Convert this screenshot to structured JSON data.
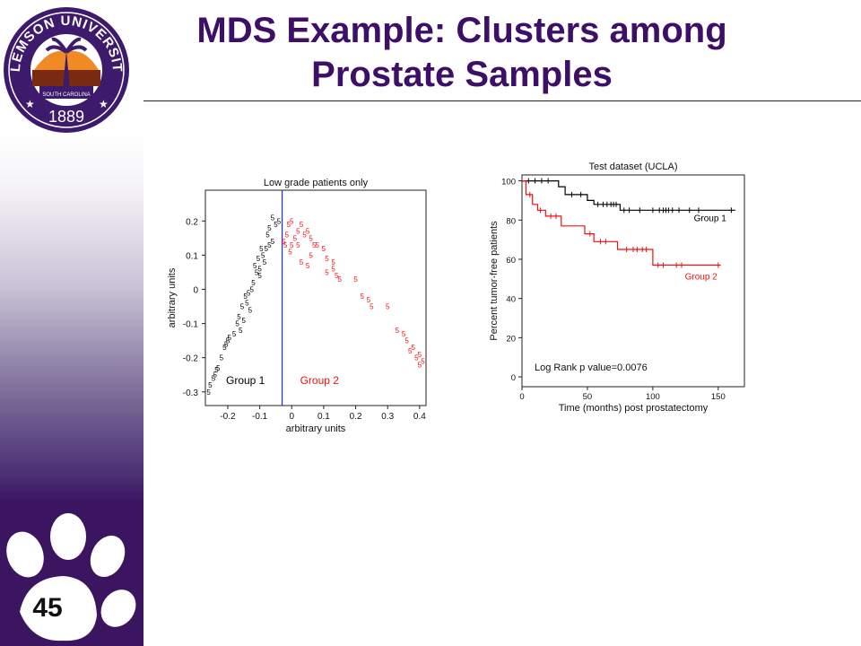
{
  "slide": {
    "title_line1": "MDS Example: Clusters among",
    "title_line2": "Prostate Samples",
    "number": "45",
    "logo": {
      "text": "CLEMSON UNIVERSITY",
      "sub": "SOUTH CAROLINA",
      "year": "1889"
    }
  },
  "colors": {
    "title": "#3d0f67",
    "sidebar_dark": "#3b1560",
    "group1": "#000000",
    "group2": "#ee1111",
    "divider": "#1a2fd0"
  },
  "chart_data": [
    {
      "type": "scatter",
      "title": "Low grade patients only",
      "xlabel": "arbitrary units",
      "ylabel": "arbitrary units",
      "xlim": [
        -0.27,
        0.42
      ],
      "ylim": [
        -0.34,
        0.29
      ],
      "xticks": [
        "-0.2",
        "-0.1",
        "0",
        "0.1",
        "0.2",
        "0.3",
        "0.4"
      ],
      "yticks": [
        "0.2",
        "0.1",
        "0",
        "-0.1",
        "-0.2",
        "-0.3"
      ],
      "marker": "5",
      "divider_x": -0.03,
      "annotations": [
        "Group 1",
        "Group 2"
      ],
      "series": [
        {
          "color": "#000000",
          "points": [
            [
              -0.26,
              -0.3
            ],
            [
              -0.255,
              -0.28
            ],
            [
              -0.245,
              -0.26
            ],
            [
              -0.24,
              -0.25
            ],
            [
              -0.235,
              -0.235
            ],
            [
              -0.22,
              -0.2
            ],
            [
              -0.21,
              -0.17
            ],
            [
              -0.205,
              -0.16
            ],
            [
              -0.2,
              -0.15
            ],
            [
              -0.18,
              -0.13
            ],
            [
              -0.17,
              -0.1
            ],
            [
              -0.16,
              -0.12
            ],
            [
              -0.15,
              -0.09
            ],
            [
              -0.155,
              -0.05
            ],
            [
              -0.14,
              -0.04
            ],
            [
              -0.13,
              -0.06
            ],
            [
              -0.145,
              -0.02
            ],
            [
              -0.135,
              -0.01
            ],
            [
              -0.12,
              0.02
            ],
            [
              -0.11,
              0.05
            ],
            [
              -0.1,
              0.06
            ],
            [
              -0.115,
              0.07
            ],
            [
              -0.105,
              0.09
            ],
            [
              -0.09,
              0.1
            ],
            [
              -0.08,
              0.12
            ],
            [
              -0.095,
              0.12
            ],
            [
              -0.07,
              0.13
            ],
            [
              -0.06,
              0.14
            ],
            [
              -0.075,
              0.16
            ],
            [
              -0.05,
              0.19
            ],
            [
              -0.04,
              0.2
            ],
            [
              -0.06,
              0.21
            ],
            [
              -0.07,
              0.18
            ],
            [
              -0.085,
              0.08
            ],
            [
              -0.1,
              0.04
            ],
            [
              -0.125,
              0.0
            ],
            [
              -0.165,
              -0.08
            ],
            [
              -0.195,
              -0.14
            ],
            [
              -0.23,
              -0.23
            ]
          ]
        },
        {
          "color": "#ee1111",
          "points": [
            [
              -0.025,
              0.14
            ],
            [
              -0.02,
              0.13
            ],
            [
              -0.015,
              0.16
            ],
            [
              -0.01,
              0.19
            ],
            [
              0.0,
              0.2
            ],
            [
              0.0,
              0.13
            ],
            [
              0.01,
              0.15
            ],
            [
              0.02,
              0.17
            ],
            [
              0.03,
              0.19
            ],
            [
              0.04,
              0.16
            ],
            [
              0.05,
              0.17
            ],
            [
              0.06,
              0.15
            ],
            [
              0.07,
              0.13
            ],
            [
              0.05,
              0.07
            ],
            [
              0.03,
              0.08
            ],
            [
              0.08,
              0.13
            ],
            [
              0.1,
              0.12
            ],
            [
              0.11,
              0.09
            ],
            [
              0.13,
              0.08
            ],
            [
              0.13,
              0.06
            ],
            [
              0.14,
              0.04
            ],
            [
              0.11,
              0.05
            ],
            [
              0.15,
              0.03
            ],
            [
              0.2,
              0.03
            ],
            [
              0.22,
              -0.02
            ],
            [
              0.24,
              -0.03
            ],
            [
              0.25,
              -0.05
            ],
            [
              0.3,
              -0.05
            ],
            [
              0.33,
              -0.12
            ],
            [
              0.35,
              -0.13
            ],
            [
              0.36,
              -0.15
            ],
            [
              0.37,
              -0.18
            ],
            [
              0.38,
              -0.17
            ],
            [
              0.39,
              -0.2
            ],
            [
              0.4,
              -0.19
            ],
            [
              0.41,
              -0.21
            ],
            [
              0.4,
              -0.22
            ],
            [
              0.06,
              0.1
            ],
            [
              0.02,
              0.13
            ],
            [
              -0.005,
              0.11
            ]
          ]
        }
      ]
    },
    {
      "type": "line",
      "style": "step",
      "title": "Test dataset (UCLA)",
      "xlabel": "Time (months) post prostatectomy",
      "ylabel": "Percent tumor-free patients",
      "xlim": [
        0,
        170
      ],
      "ylim": [
        -5,
        103
      ],
      "xticks": [
        "0",
        "50",
        "100",
        "150"
      ],
      "yticks": [
        "100",
        "80",
        "60",
        "40",
        "20",
        "0"
      ],
      "annotation": "Log Rank p value=0.0076",
      "series": [
        {
          "name": "Group 1",
          "color": "#000000",
          "steps": [
            [
              0,
              100
            ],
            [
              28,
              100
            ],
            [
              28,
              97
            ],
            [
              33,
              97
            ],
            [
              33,
              93
            ],
            [
              50,
              93
            ],
            [
              50,
              90
            ],
            [
              55,
              90
            ],
            [
              55,
              88
            ],
            [
              75,
              88
            ],
            [
              75,
              85
            ],
            [
              163,
              85
            ]
          ],
          "censor": [
            [
              5,
              100
            ],
            [
              10,
              100
            ],
            [
              15,
              100
            ],
            [
              20,
              100
            ],
            [
              38,
              93
            ],
            [
              45,
              93
            ],
            [
              58,
              88
            ],
            [
              62,
              88
            ],
            [
              65,
              88
            ],
            [
              68,
              88
            ],
            [
              70,
              88
            ],
            [
              72,
              88
            ],
            [
              78,
              85
            ],
            [
              82,
              85
            ],
            [
              90,
              85
            ],
            [
              100,
              85
            ],
            [
              105,
              85
            ],
            [
              108,
              85
            ],
            [
              110,
              85
            ],
            [
              112,
              85
            ],
            [
              115,
              85
            ],
            [
              120,
              85
            ],
            [
              128,
              85
            ],
            [
              135,
              85
            ],
            [
              160,
              85
            ]
          ]
        },
        {
          "name": "Group 2",
          "color": "#ee1111",
          "steps": [
            [
              0,
              100
            ],
            [
              3,
              100
            ],
            [
              3,
              93
            ],
            [
              8,
              93
            ],
            [
              8,
              88
            ],
            [
              12,
              88
            ],
            [
              12,
              85
            ],
            [
              18,
              85
            ],
            [
              18,
              82
            ],
            [
              30,
              82
            ],
            [
              30,
              77
            ],
            [
              48,
              77
            ],
            [
              48,
              73
            ],
            [
              55,
              73
            ],
            [
              55,
              69
            ],
            [
              73,
              69
            ],
            [
              73,
              65
            ],
            [
              100,
              65
            ],
            [
              100,
              57
            ],
            [
              152,
              57
            ]
          ],
          "censor": [
            [
              6,
              93
            ],
            [
              14,
              85
            ],
            [
              22,
              82
            ],
            [
              26,
              82
            ],
            [
              52,
              73
            ],
            [
              60,
              69
            ],
            [
              64,
              69
            ],
            [
              80,
              65
            ],
            [
              85,
              65
            ],
            [
              88,
              65
            ],
            [
              92,
              65
            ],
            [
              95,
              65
            ],
            [
              104,
              57
            ],
            [
              108,
              57
            ],
            [
              118,
              57
            ],
            [
              122,
              57
            ],
            [
              150,
              57
            ]
          ]
        }
      ]
    }
  ]
}
